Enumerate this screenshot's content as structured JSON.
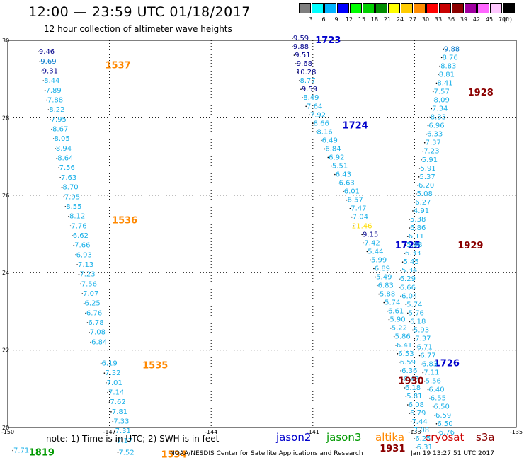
{
  "header": {
    "title": "12:00 — 23:59 UTC 01/18/2017",
    "subtitle": "12 hour collection of altimeter wave heights"
  },
  "colorbar": {
    "unit": "(ft)",
    "stops": [
      {
        "label": "3",
        "color": "#7f7f7f"
      },
      {
        "label": "6",
        "color": "#00ffff"
      },
      {
        "label": "9",
        "color": "#00b4ff"
      },
      {
        "label": "12",
        "color": "#0000ff"
      },
      {
        "label": "15",
        "color": "#00ff00"
      },
      {
        "label": "18",
        "color": "#00d000"
      },
      {
        "label": "21",
        "color": "#008c00"
      },
      {
        "label": "24",
        "color": "#ffff00"
      },
      {
        "label": "27",
        "color": "#ffcc00"
      },
      {
        "label": "30",
        "color": "#ff8c00"
      },
      {
        "label": "33",
        "color": "#ff0000"
      },
      {
        "label": "36",
        "color": "#c80000"
      },
      {
        "label": "39",
        "color": "#8c0000"
      },
      {
        "label": "42",
        "color": "#a000a0"
      },
      {
        "label": "45",
        "color": "#ff66ff"
      },
      {
        "label": "70",
        "color": "#ffc8ff"
      },
      {
        "label": "",
        "color": "#000000"
      }
    ]
  },
  "map": {
    "lon_ticks": [
      "-150",
      "-147",
      "-144",
      "-141",
      "-138",
      "-135"
    ],
    "lat_ticks": [
      "20",
      "22",
      "24",
      "26",
      "28",
      "30"
    ],
    "grid": true,
    "colors": {
      "light": "#1ab0e8",
      "mid": "#0077cc",
      "dark": "#00008b",
      "yellow": "#ffdd00",
      "jason2": "#0000cc",
      "jason3": "#009900",
      "altika": "#ff8800",
      "cryosat": "#8b0000"
    }
  },
  "tracks": [
    {
      "pass": "1537",
      "satellite": "altika",
      "label_lon": -146.75,
      "label_lat": 29.35,
      "points": [
        [
          -148.85,
          29.65,
          "9.46",
          "dark"
        ],
        [
          -148.8,
          29.4,
          "9.69",
          "mid"
        ],
        [
          -148.75,
          29.15,
          "9.31",
          "dark"
        ],
        [
          -148.7,
          28.9,
          "8.44",
          "light"
        ],
        [
          -148.65,
          28.65,
          "7.89",
          "light"
        ],
        [
          -148.6,
          28.4,
          "7.88",
          "light"
        ],
        [
          -148.55,
          28.15,
          "8.22",
          "light"
        ],
        [
          -148.5,
          27.9,
          "7.95",
          "light"
        ],
        [
          -148.45,
          27.65,
          "8.67",
          "light"
        ],
        [
          -148.4,
          27.4,
          "8.05",
          "light"
        ],
        [
          -148.35,
          27.15,
          "8.94",
          "light"
        ],
        [
          -148.3,
          26.9,
          "8.64",
          "light"
        ],
        [
          -148.25,
          26.65,
          "7.56",
          "light"
        ],
        [
          -148.2,
          26.4,
          "7.63",
          "light"
        ],
        [
          -148.15,
          26.15,
          "8.70",
          "light"
        ],
        [
          -148.1,
          25.9,
          "7.95",
          "light"
        ],
        [
          -148.05,
          25.65,
          "8.55",
          "light"
        ]
      ]
    },
    {
      "pass": "1536",
      "satellite": "altika",
      "label_lon": -146.55,
      "label_lat": 25.35,
      "points": [
        [
          -147.95,
          25.4,
          "8.12",
          "light"
        ],
        [
          -147.9,
          25.15,
          "7.76",
          "light"
        ],
        [
          -147.85,
          24.9,
          "6.62",
          "light"
        ],
        [
          -147.8,
          24.65,
          "7.66",
          "light"
        ],
        [
          -147.75,
          24.4,
          "6.93",
          "light"
        ],
        [
          -147.7,
          24.15,
          "7.13",
          "light"
        ],
        [
          -147.65,
          23.9,
          "7.23",
          "light"
        ],
        [
          -147.6,
          23.65,
          "7.56",
          "light"
        ],
        [
          -147.55,
          23.4,
          "7.07",
          "light"
        ],
        [
          -147.5,
          23.15,
          "6.25",
          "light"
        ],
        [
          -147.45,
          22.9,
          "6.76",
          "light"
        ],
        [
          -147.4,
          22.65,
          "6.78",
          "light"
        ],
        [
          -147.35,
          22.4,
          "7.08",
          "light"
        ],
        [
          -147.3,
          22.15,
          "6.84",
          "light"
        ]
      ]
    },
    {
      "pass": "1535",
      "satellite": "altika",
      "label_lon": -145.65,
      "label_lat": 21.6,
      "points": [
        [
          -147.0,
          21.6,
          "6.19",
          "light"
        ],
        [
          -146.9,
          21.35,
          "7.32",
          "light"
        ],
        [
          -146.85,
          21.1,
          "7.01",
          "light"
        ],
        [
          -146.8,
          20.85,
          "7.14",
          "light"
        ],
        [
          -146.75,
          20.6,
          "7.62",
          "light"
        ],
        [
          -146.7,
          20.35,
          "7.81",
          "light"
        ],
        [
          -146.65,
          20.1,
          "7.33",
          "light"
        ],
        [
          -146.6,
          19.85,
          "7.31",
          "light"
        ]
      ]
    },
    {
      "pass": "1534",
      "satellite": "altika",
      "label_lon": -145.1,
      "label_lat": 19.3,
      "points": [
        [
          -146.55,
          19.6,
          "7.17",
          "light"
        ],
        [
          -146.5,
          19.3,
          "7.52",
          "light"
        ]
      ]
    },
    {
      "pass": "1819",
      "satellite": "jason3",
      "label_lon": -149.0,
      "label_lat": 19.35,
      "points": [
        [
          -149.6,
          19.35,
          "7.71",
          "light"
        ]
      ]
    },
    {
      "pass": "1723",
      "satellite": "jason2",
      "label_lon": -140.55,
      "label_lat": 30.0,
      "points": [
        [
          -141.35,
          30.0,
          "9.59",
          "dark"
        ],
        [
          -141.35,
          29.78,
          "9.88",
          "dark"
        ],
        [
          -141.3,
          29.56,
          "9.51",
          "dark"
        ],
        [
          -141.25,
          29.34,
          "9.68",
          "dark"
        ],
        [
          -141.2,
          29.12,
          "10.28",
          "dark"
        ],
        [
          -141.15,
          28.9,
          "8.77",
          "light"
        ],
        [
          -141.1,
          28.68,
          "9.59",
          "dark"
        ],
        [
          -141.05,
          28.46,
          "8.49",
          "light"
        ],
        [
          -140.95,
          28.24,
          "7.64",
          "light"
        ],
        [
          -140.85,
          28.02,
          "7.92",
          "light"
        ],
        [
          -140.75,
          27.8,
          "8.66",
          "light"
        ]
      ]
    },
    {
      "pass": "1724",
      "satellite": "jason2",
      "label_lon": -139.75,
      "label_lat": 27.8,
      "points": [
        [
          -140.65,
          27.58,
          "8.16",
          "light"
        ],
        [
          -140.5,
          27.36,
          "6.49",
          "light"
        ],
        [
          -140.4,
          27.14,
          "6.84",
          "light"
        ],
        [
          -140.3,
          26.92,
          "6.92",
          "light"
        ],
        [
          -140.2,
          26.7,
          "5.51",
          "light"
        ],
        [
          -140.1,
          26.48,
          "6.43",
          "light"
        ],
        [
          -140.0,
          26.26,
          "6.63",
          "light"
        ],
        [
          -139.85,
          26.04,
          "6.01",
          "light"
        ],
        [
          -139.75,
          25.82,
          "6.57",
          "light"
        ],
        [
          -139.65,
          25.6,
          "7.47",
          "light"
        ],
        [
          -139.6,
          25.38,
          "7.04",
          "light"
        ],
        [
          -139.55,
          25.15,
          "21.46",
          "yellow"
        ],
        [
          -139.3,
          24.93,
          "9.15",
          "dark"
        ],
        [
          -139.25,
          24.71,
          "7.42",
          "light"
        ],
        [
          -139.15,
          24.49,
          "5.44",
          "light"
        ],
        [
          -139.05,
          24.27,
          "5.99",
          "light"
        ],
        [
          -138.95,
          24.05,
          "6.89",
          "light"
        ],
        [
          -138.9,
          23.83,
          "5.49",
          "light"
        ],
        [
          -138.85,
          23.61,
          "6.83",
          "light"
        ],
        [
          -138.8,
          23.39,
          "5.88",
          "light"
        ]
      ]
    },
    {
      "pass": "1725",
      "satellite": "jason2",
      "label_lon": -138.2,
      "label_lat": 24.7,
      "points": [
        [
          -138.65,
          23.17,
          "5.74",
          "light"
        ],
        [
          -138.55,
          22.95,
          "6.61",
          "light"
        ],
        [
          -138.5,
          22.73,
          "5.90",
          "light"
        ],
        [
          -138.45,
          22.51,
          "5.22",
          "light"
        ],
        [
          -138.35,
          22.29,
          "5.86",
          "light"
        ],
        [
          -138.3,
          22.07,
          "6.41",
          "light"
        ],
        [
          -138.25,
          21.85,
          "6.53",
          "light"
        ],
        [
          -138.2,
          21.63,
          "6.59",
          "light"
        ],
        [
          -138.15,
          21.41,
          "6.36",
          "light"
        ],
        [
          -138.1,
          21.19,
          "6.43",
          "light"
        ]
      ]
    },
    {
      "pass": "1726",
      "satellite": "jason2",
      "label_lon": -137.05,
      "label_lat": 21.65,
      "points": [
        [
          -138.05,
          20.97,
          "6.18",
          "light"
        ],
        [
          -138.0,
          20.75,
          "5.81",
          "light"
        ],
        [
          -137.95,
          20.53,
          "6.08",
          "light"
        ],
        [
          -137.9,
          20.31,
          "6.79",
          "light"
        ],
        [
          -137.85,
          20.09,
          "7.44",
          "light"
        ],
        [
          -137.8,
          19.87,
          "7.08",
          "light"
        ],
        [
          -137.75,
          19.65,
          "6.25",
          "light"
        ],
        [
          -137.7,
          19.43,
          "6.31",
          "light"
        ]
      ]
    },
    {
      "pass": "1928",
      "satellite": "cryosat",
      "label_lon": -136.05,
      "label_lat": 28.65,
      "points": [
        [
          -136.9,
          29.72,
          "9.88",
          "mid"
        ],
        [
          -136.95,
          29.5,
          "8.76",
          "light"
        ],
        [
          -137.0,
          29.28,
          "8.83",
          "light"
        ],
        [
          -137.05,
          29.06,
          "8.81",
          "light"
        ],
        [
          -137.1,
          28.84,
          "8.41",
          "light"
        ],
        [
          -137.2,
          28.62,
          "7.57",
          "light"
        ],
        [
          -137.2,
          28.4,
          "8.09",
          "light"
        ],
        [
          -137.25,
          28.18,
          "7.34",
          "light"
        ],
        [
          -137.3,
          27.96,
          "8.33",
          "light"
        ],
        [
          -137.35,
          27.74,
          "6.96",
          "light"
        ],
        [
          -137.4,
          27.52,
          "6.33",
          "light"
        ],
        [
          -137.45,
          27.3,
          "7.37",
          "light"
        ],
        [
          -137.5,
          27.08,
          "7.23",
          "light"
        ]
      ]
    },
    {
      "pass": "1929",
      "satellite": "cryosat",
      "label_lon": -136.35,
      "label_lat": 24.7,
      "points": [
        [
          -137.55,
          26.86,
          "5.91",
          "light"
        ],
        [
          -137.6,
          26.64,
          "5.91",
          "light"
        ],
        [
          -137.62,
          26.42,
          "5.37",
          "light"
        ],
        [
          -137.65,
          26.2,
          "6.20",
          "light"
        ],
        [
          -137.7,
          25.98,
          "5.08",
          "light"
        ],
        [
          -137.75,
          25.76,
          "6.27",
          "light"
        ],
        [
          -137.8,
          25.54,
          "4.91",
          "light"
        ],
        [
          -137.9,
          25.32,
          "5.38",
          "light"
        ],
        [
          -137.9,
          25.1,
          "6.86",
          "light"
        ],
        [
          -137.95,
          24.88,
          "6.11",
          "light"
        ],
        [
          -138.0,
          24.66,
          "5.08",
          "light"
        ],
        [
          -138.05,
          24.44,
          "6.33",
          "light"
        ],
        [
          -138.1,
          24.22,
          "5.45",
          "light"
        ]
      ]
    },
    {
      "pass": "1930",
      "satellite": "cryosat",
      "label_lon": -138.1,
      "label_lat": 21.2,
      "points": [
        [
          -138.15,
          24.0,
          "5.34",
          "light"
        ],
        [
          -138.2,
          23.78,
          "6.29",
          "light"
        ],
        [
          -138.2,
          23.56,
          "6.66",
          "light"
        ],
        [
          -138.15,
          23.34,
          "6.04",
          "light"
        ],
        [
          -138.0,
          23.12,
          "5.74",
          "light"
        ],
        [
          -137.95,
          22.9,
          "5.76",
          "light"
        ],
        [
          -137.9,
          22.68,
          "6.18",
          "light"
        ],
        [
          -137.8,
          22.46,
          "5.93",
          "light"
        ],
        [
          -137.75,
          22.24,
          "7.37",
          "light"
        ],
        [
          -137.7,
          22.02,
          "6.71",
          "light"
        ]
      ]
    },
    {
      "pass": "1931",
      "satellite": "cryosat",
      "label_lon": -138.65,
      "label_lat": 19.45,
      "points": [
        [
          -137.6,
          21.8,
          "6.77",
          "light"
        ],
        [
          -137.55,
          21.58,
          "6.83",
          "light"
        ],
        [
          -137.5,
          21.36,
          "7.11",
          "light"
        ],
        [
          -137.45,
          21.14,
          "5.56",
          "light"
        ],
        [
          -137.35,
          20.92,
          "6.40",
          "light"
        ],
        [
          -137.3,
          20.7,
          "6.55",
          "light"
        ],
        [
          -137.2,
          20.48,
          "6.50",
          "light"
        ],
        [
          -137.15,
          20.26,
          "6.59",
          "light"
        ],
        [
          -137.1,
          20.04,
          "6.50",
          "light"
        ],
        [
          -137.05,
          19.82,
          "6.76",
          "light"
        ]
      ]
    }
  ],
  "footer": {
    "note": "note:  1) Time is in UTC;  2) SWH is in feet",
    "satellites": [
      {
        "name": "jason2",
        "color": "#0000cc"
      },
      {
        "name": "jason3",
        "color": "#009900"
      },
      {
        "name": "altika",
        "color": "#ff8800"
      },
      {
        "name": "cryosat",
        "color": "#cc0000"
      },
      {
        "name": "s3a",
        "color": "#8b0000"
      }
    ],
    "credit": "NOAA/NESDIS Center for Satellite Applications and Research",
    "timestamp": "Jan 19 13:27:51 UTC 2017"
  }
}
